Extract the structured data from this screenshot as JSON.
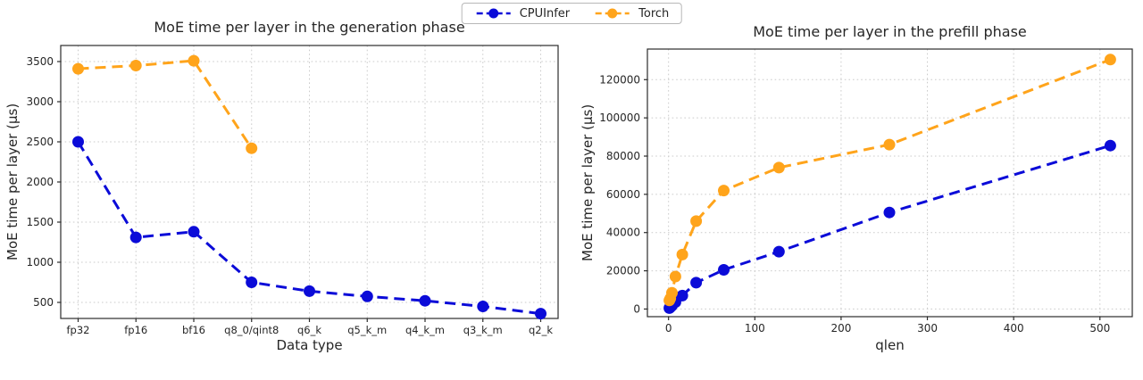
{
  "legend": {
    "items": [
      {
        "label": "CPUInfer",
        "color": "#0b0bd8"
      },
      {
        "label": "Torch",
        "color": "#ffa41b"
      }
    ]
  },
  "chart_data": [
    {
      "type": "line",
      "title": "MoE time per layer in the generation phase",
      "xlabel": "Data type",
      "ylabel": "MoE time per layer (μs)",
      "categories": [
        "fp32",
        "fp16",
        "bf16",
        "q8_0/qint8",
        "q6_k",
        "q5_k_m",
        "q4_k_m",
        "q3_k_m",
        "q2_k"
      ],
      "yticks": [
        500,
        1000,
        1500,
        2000,
        2500,
        3000,
        3500
      ],
      "ylim": [
        300,
        3700
      ],
      "grid": true,
      "line_style": "dashed",
      "marker": "circle",
      "series": [
        {
          "name": "CPUInfer",
          "color": "#0b0bd8",
          "values": [
            2500,
            1310,
            1380,
            750,
            640,
            575,
            520,
            450,
            360
          ]
        },
        {
          "name": "Torch",
          "color": "#ffa41b",
          "values": [
            3410,
            3450,
            3510,
            2420,
            null,
            null,
            null,
            null,
            null
          ]
        }
      ]
    },
    {
      "type": "line",
      "title": "MoE time per layer in the prefill phase",
      "xlabel": "qlen",
      "ylabel": "MoE time per layer (μs)",
      "x": [
        1,
        2,
        4,
        8,
        16,
        32,
        64,
        128,
        256,
        512
      ],
      "xticks": [
        0,
        100,
        200,
        300,
        400,
        500
      ],
      "xlim": [
        -24.5,
        537.5
      ],
      "yticks": [
        0,
        20000,
        40000,
        60000,
        80000,
        100000,
        120000
      ],
      "ylim": [
        -4000,
        136000
      ],
      "grid": true,
      "line_style": "dashed",
      "marker": "circle",
      "series": [
        {
          "name": "CPUInfer",
          "color": "#0b0bd8",
          "values": [
            500,
            900,
            1800,
            3600,
            7000,
            13800,
            20500,
            30000,
            50500,
            85500
          ]
        },
        {
          "name": "Torch",
          "color": "#ffa41b",
          "values": [
            4500,
            5500,
            8500,
            17000,
            28500,
            46000,
            62000,
            74000,
            86000,
            130500
          ]
        }
      ]
    }
  ]
}
